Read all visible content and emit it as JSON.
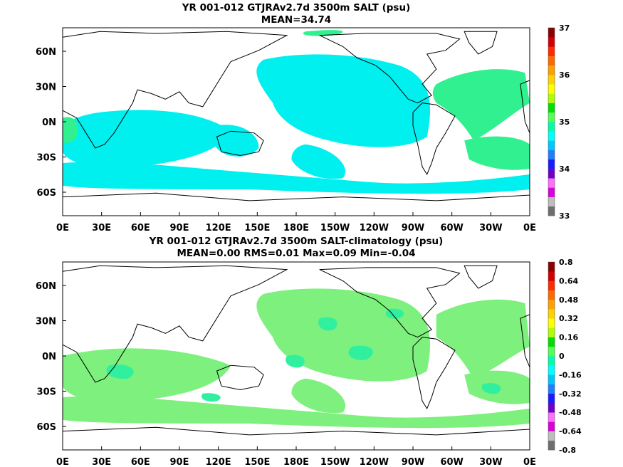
{
  "maps": [
    {
      "title_line1": "YR 001-012 GTJRAv2.7d 3500m SALT (psu)",
      "title_line2": "MEAN=34.74",
      "lat_labels": [
        "60N",
        "30N",
        "0N",
        "30S",
        "60S"
      ],
      "lon_labels": [
        "0E",
        "30E",
        "60E",
        "90E",
        "120E",
        "150E",
        "180E",
        "150W",
        "120W",
        "90W",
        "60W",
        "30W",
        "0E"
      ],
      "colorbar_labels": [
        "37",
        "36",
        "35",
        "34",
        "33"
      ],
      "colorbar_colors": [
        "#6e6e6e",
        "#bdbdbd",
        "#d900d9",
        "#ff6eff",
        "#7000c8",
        "#1a1aff",
        "#1e80ff",
        "#00c8ff",
        "#00ffff",
        "#00ffaa",
        "#55ff55",
        "#00e000",
        "#b0ff00",
        "#ffff00",
        "#ffd200",
        "#ffa000",
        "#ff6a00",
        "#ff2a00",
        "#d20000",
        "#8b0000"
      ],
      "field_color": "#00f0f0",
      "secondary_color": "#30f090"
    },
    {
      "title_line1": "YR 001-012 GTJRAv2.7d 3500m SALT-climatology (psu)",
      "title_line2": "MEAN=0.00   RMS=0.01   Max=0.09   Min=-0.04",
      "lat_labels": [
        "60N",
        "30N",
        "0N",
        "30S",
        "60S"
      ],
      "lon_labels": [
        "0E",
        "30E",
        "60E",
        "90E",
        "120E",
        "150E",
        "180E",
        "150W",
        "120W",
        "90W",
        "60W",
        "30W",
        "0E"
      ],
      "colorbar_labels": [
        "0.8",
        "0.64",
        "0.48",
        "0.32",
        "0.16",
        "0",
        "-0.16",
        "-0.32",
        "-0.48",
        "-0.64",
        "-0.8"
      ],
      "colorbar_colors": [
        "#6e6e6e",
        "#bdbdbd",
        "#d900d9",
        "#ff6eff",
        "#7000c8",
        "#1a1aff",
        "#1e80ff",
        "#00c8ff",
        "#00ffff",
        "#00ffaa",
        "#55ff55",
        "#00e000",
        "#b0ff00",
        "#ffff00",
        "#ffd200",
        "#ffa000",
        "#ff6a00",
        "#ff2a00",
        "#d20000",
        "#8b0000"
      ],
      "field_color": "#7df07d",
      "secondary_color": "#30f0a0"
    }
  ]
}
